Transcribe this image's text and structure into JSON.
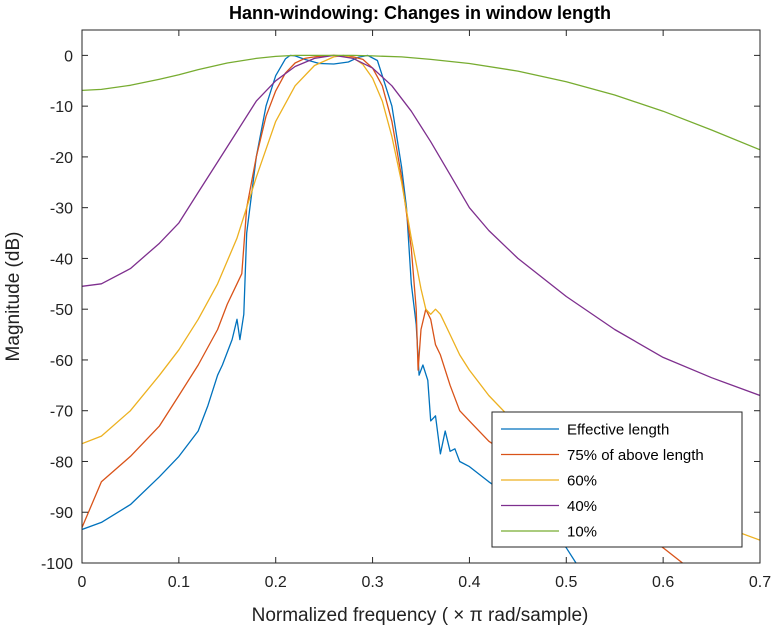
{
  "chart_data": {
    "type": "line",
    "title": "Hann-windowing: Changes in window length",
    "xlabel": "Normalized frequency ( × π rad/sample)",
    "ylabel": "Magnitude (dB)",
    "xlim": [
      0,
      0.7
    ],
    "ylim": [
      -100,
      5
    ],
    "xticks": [
      0,
      0.1,
      0.2,
      0.3,
      0.4,
      0.5,
      0.6,
      0.7
    ],
    "xtick_labels": [
      "0",
      "0.1",
      "0.2",
      "0.3",
      "0.4",
      "0.5",
      "0.6",
      "0.7"
    ],
    "yticks": [
      0,
      -10,
      -20,
      -30,
      -40,
      -50,
      -60,
      -70,
      -80,
      -90,
      -100
    ],
    "ytick_labels": [
      "0",
      "-10",
      "-20",
      "-30",
      "-40",
      "-50",
      "-60",
      "-70",
      "-80",
      "-90",
      "-100"
    ],
    "grid": false,
    "legend_position": "bottom-right",
    "series": [
      {
        "name": "Effective length",
        "color": "#0072BD",
        "points": [
          [
            0,
            -93.4
          ],
          [
            0.02,
            -92
          ],
          [
            0.05,
            -88.5
          ],
          [
            0.08,
            -83
          ],
          [
            0.1,
            -79
          ],
          [
            0.12,
            -74
          ],
          [
            0.13,
            -69
          ],
          [
            0.14,
            -63
          ],
          [
            0.145,
            -61
          ],
          [
            0.155,
            -56
          ],
          [
            0.16,
            -52
          ],
          [
            0.163,
            -56
          ],
          [
            0.167,
            -51
          ],
          [
            0.17,
            -35
          ],
          [
            0.18,
            -20
          ],
          [
            0.19,
            -10
          ],
          [
            0.2,
            -4
          ],
          [
            0.21,
            -0.7
          ],
          [
            0.215,
            0
          ],
          [
            0.22,
            -0.1
          ],
          [
            0.23,
            -0.8
          ],
          [
            0.245,
            -1.6
          ],
          [
            0.26,
            -1.7
          ],
          [
            0.275,
            -1.3
          ],
          [
            0.285,
            -0.4
          ],
          [
            0.295,
            0
          ],
          [
            0.305,
            -1
          ],
          [
            0.31,
            -4
          ],
          [
            0.32,
            -10
          ],
          [
            0.33,
            -22
          ],
          [
            0.335,
            -30
          ],
          [
            0.34,
            -45
          ],
          [
            0.345,
            -53
          ],
          [
            0.348,
            -63
          ],
          [
            0.352,
            -61
          ],
          [
            0.357,
            -64
          ],
          [
            0.36,
            -72
          ],
          [
            0.365,
            -71
          ],
          [
            0.37,
            -78.5
          ],
          [
            0.375,
            -74
          ],
          [
            0.38,
            -78
          ],
          [
            0.385,
            -77.5
          ],
          [
            0.39,
            -80
          ],
          [
            0.4,
            -81
          ],
          [
            0.42,
            -84
          ],
          [
            0.45,
            -88
          ],
          [
            0.48,
            -93
          ],
          [
            0.5,
            -97
          ],
          [
            0.51,
            -100
          ]
        ]
      },
      {
        "name": "75% of above length",
        "color": "#D95319",
        "points": [
          [
            0,
            -93
          ],
          [
            0.02,
            -84
          ],
          [
            0.05,
            -79
          ],
          [
            0.08,
            -73
          ],
          [
            0.1,
            -67
          ],
          [
            0.12,
            -61
          ],
          [
            0.14,
            -54
          ],
          [
            0.15,
            -49
          ],
          [
            0.16,
            -45
          ],
          [
            0.165,
            -43
          ],
          [
            0.17,
            -30
          ],
          [
            0.18,
            -20
          ],
          [
            0.19,
            -12
          ],
          [
            0.2,
            -7
          ],
          [
            0.21,
            -3.5
          ],
          [
            0.22,
            -1.5
          ],
          [
            0.23,
            -0.6
          ],
          [
            0.24,
            -0.3
          ],
          [
            0.25,
            -0.1
          ],
          [
            0.26,
            0
          ],
          [
            0.27,
            -0.1
          ],
          [
            0.28,
            -0.3
          ],
          [
            0.29,
            -0.8
          ],
          [
            0.3,
            -2.5
          ],
          [
            0.31,
            -6
          ],
          [
            0.32,
            -13
          ],
          [
            0.33,
            -24
          ],
          [
            0.34,
            -38
          ],
          [
            0.345,
            -50
          ],
          [
            0.347,
            -62
          ],
          [
            0.35,
            -54
          ],
          [
            0.355,
            -50
          ],
          [
            0.36,
            -52
          ],
          [
            0.365,
            -57
          ],
          [
            0.37,
            -59
          ],
          [
            0.38,
            -65
          ],
          [
            0.39,
            -70
          ],
          [
            0.4,
            -72
          ],
          [
            0.42,
            -76
          ],
          [
            0.45,
            -80
          ],
          [
            0.5,
            -85
          ],
          [
            0.55,
            -90
          ],
          [
            0.6,
            -97
          ],
          [
            0.62,
            -100
          ]
        ]
      },
      {
        "name": "60%",
        "color": "#EDB120",
        "points": [
          [
            0,
            -76.5
          ],
          [
            0.02,
            -75
          ],
          [
            0.05,
            -70
          ],
          [
            0.08,
            -63
          ],
          [
            0.1,
            -58
          ],
          [
            0.12,
            -52
          ],
          [
            0.14,
            -45
          ],
          [
            0.16,
            -36
          ],
          [
            0.18,
            -24
          ],
          [
            0.2,
            -13
          ],
          [
            0.22,
            -6
          ],
          [
            0.24,
            -2
          ],
          [
            0.26,
            -0.3
          ],
          [
            0.27,
            0
          ],
          [
            0.28,
            -0.5
          ],
          [
            0.29,
            -1.8
          ],
          [
            0.3,
            -4.5
          ],
          [
            0.31,
            -9
          ],
          [
            0.32,
            -16
          ],
          [
            0.33,
            -25
          ],
          [
            0.34,
            -36
          ],
          [
            0.35,
            -46
          ],
          [
            0.355,
            -50
          ],
          [
            0.36,
            -51
          ],
          [
            0.365,
            -50
          ],
          [
            0.37,
            -51
          ],
          [
            0.38,
            -55
          ],
          [
            0.39,
            -59
          ],
          [
            0.4,
            -62
          ],
          [
            0.42,
            -67
          ],
          [
            0.45,
            -73
          ],
          [
            0.5,
            -79
          ],
          [
            0.55,
            -84
          ],
          [
            0.6,
            -88.5
          ],
          [
            0.65,
            -92
          ],
          [
            0.7,
            -95.5
          ]
        ]
      },
      {
        "name": "40%",
        "color": "#7E2F8E",
        "points": [
          [
            0,
            -45.5
          ],
          [
            0.02,
            -45
          ],
          [
            0.05,
            -42
          ],
          [
            0.08,
            -37
          ],
          [
            0.1,
            -33
          ],
          [
            0.12,
            -27
          ],
          [
            0.14,
            -21
          ],
          [
            0.16,
            -15
          ],
          [
            0.18,
            -9
          ],
          [
            0.2,
            -5
          ],
          [
            0.22,
            -2.2
          ],
          [
            0.24,
            -0.6
          ],
          [
            0.26,
            0
          ],
          [
            0.28,
            -0.6
          ],
          [
            0.3,
            -2.5
          ],
          [
            0.32,
            -6
          ],
          [
            0.34,
            -11
          ],
          [
            0.36,
            -17
          ],
          [
            0.38,
            -23.5
          ],
          [
            0.4,
            -30
          ],
          [
            0.42,
            -34.5
          ],
          [
            0.45,
            -40
          ],
          [
            0.5,
            -47.5
          ],
          [
            0.55,
            -54
          ],
          [
            0.6,
            -59.5
          ],
          [
            0.65,
            -63.5
          ],
          [
            0.7,
            -67
          ]
        ]
      },
      {
        "name": "10%",
        "color": "#77AC30",
        "points": [
          [
            0,
            -6.9
          ],
          [
            0.02,
            -6.7
          ],
          [
            0.05,
            -5.9
          ],
          [
            0.08,
            -4.7
          ],
          [
            0.1,
            -3.8
          ],
          [
            0.12,
            -2.8
          ],
          [
            0.15,
            -1.5
          ],
          [
            0.18,
            -0.6
          ],
          [
            0.2,
            -0.2
          ],
          [
            0.22,
            0
          ],
          [
            0.24,
            0
          ],
          [
            0.26,
            0
          ],
          [
            0.28,
            0
          ],
          [
            0.3,
            -0.1
          ],
          [
            0.33,
            -0.3
          ],
          [
            0.36,
            -0.8
          ],
          [
            0.4,
            -1.6
          ],
          [
            0.45,
            -3.1
          ],
          [
            0.5,
            -5.2
          ],
          [
            0.55,
            -7.8
          ],
          [
            0.6,
            -11
          ],
          [
            0.65,
            -14.7
          ],
          [
            0.7,
            -18.6
          ]
        ]
      }
    ]
  }
}
